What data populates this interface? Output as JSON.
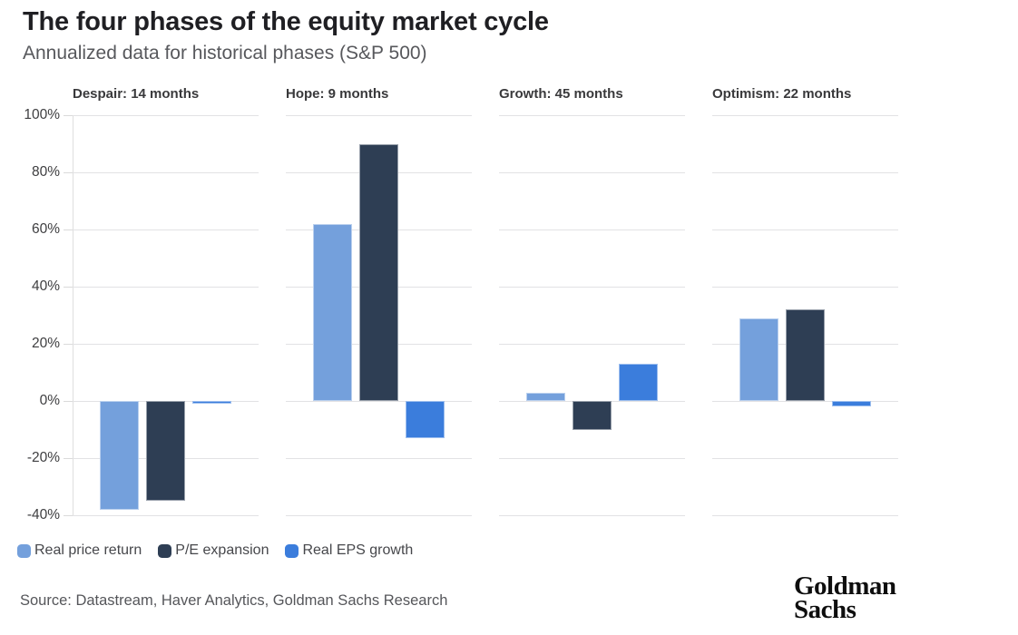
{
  "page": {
    "title": "The four phases of the equity market cycle",
    "subtitle": "Annualized data for historical phases (S&P 500)"
  },
  "chart_data": {
    "type": "bar",
    "title": "The four phases of the equity market cycle",
    "subtitle": "Annualized data for historical phases (S&P 500)",
    "unit": "percent",
    "categories": [
      "Despair: 14 months",
      "Hope: 9 months",
      "Growth: 45 months",
      "Optimism: 22 months"
    ],
    "series": [
      {
        "name": "Real price return",
        "color": "#74A0DC",
        "values": [
          -38,
          62,
          3,
          29
        ]
      },
      {
        "name": "P/E expansion",
        "color": "#2E3E54",
        "values": [
          -35,
          90,
          -10,
          32
        ]
      },
      {
        "name": "Real EPS growth",
        "color": "#3B7DDC",
        "values": [
          -1,
          -13,
          13,
          -2
        ]
      }
    ],
    "panels": [
      {
        "label": "Despair: 14 months",
        "values": [
          -38,
          -35,
          -1
        ]
      },
      {
        "label": "Hope: 9 months",
        "values": [
          62,
          90,
          -13
        ]
      },
      {
        "label": "Growth: 45 months",
        "values": [
          3,
          -10,
          13
        ]
      },
      {
        "label": "Optimism: 22 months",
        "values": [
          29,
          32,
          -2
        ]
      }
    ],
    "y_ticks": [
      {
        "label": "100%",
        "value": 100
      },
      {
        "label": "80%",
        "value": 80
      },
      {
        "label": "60%",
        "value": 60
      },
      {
        "label": "40%",
        "value": 40
      },
      {
        "label": "20%",
        "value": 20
      },
      {
        "label": "0%",
        "value": 0
      },
      {
        "label": "-20%",
        "value": -20
      },
      {
        "label": "-40%",
        "value": -40
      }
    ],
    "ylim": [
      -40,
      100
    ],
    "grid": true,
    "legend_position": "bottom-left"
  },
  "colors": {
    "real_price_return": "#74A0DC",
    "pe_expansion": "#2E3E54",
    "real_eps_growth": "#3B7DDC",
    "gridline": "#E2E2E4",
    "axis_line": "#DEDEDE",
    "title_text": "#1F1F23",
    "subtitle_text": "#57585C",
    "body_text": "#46474B"
  },
  "footer": {
    "source": "Source: Datastream, Haver Analytics, Goldman Sachs Research",
    "logo_line1": "Goldman",
    "logo_line2": "Sachs"
  }
}
